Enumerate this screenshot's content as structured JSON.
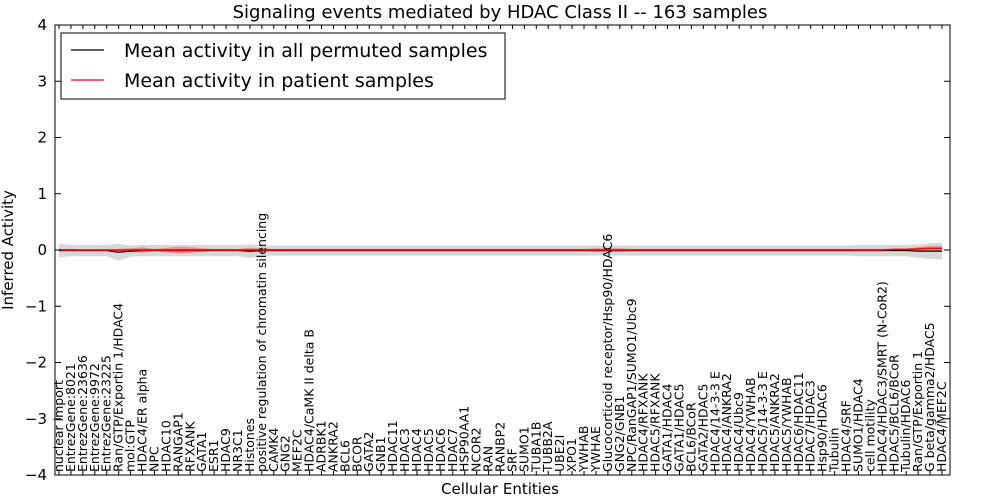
{
  "chart_data": {
    "type": "line",
    "title": "Signaling events mediated by HDAC Class II -- 163 samples",
    "xlabel": "Cellular Entities",
    "ylabel": "Inferred Activity",
    "ylim": [
      -4,
      4
    ],
    "yticks": [
      -4,
      -3,
      -2,
      -1,
      0,
      1,
      2,
      3,
      4
    ],
    "ytick_labels": [
      "−4",
      "−3",
      "−2",
      "−1",
      "0",
      "1",
      "2",
      "3",
      "4"
    ],
    "legend_position": "top-left",
    "colors": {
      "permuted": "#000000",
      "patient": "#ff0000",
      "band_permuted": "#c8c8c8",
      "band_patient": "#f08080"
    },
    "categories": [
      "nuclear import",
      "EntrezGene:8021",
      "EntrezGene:23636",
      "EntrezGene:9972",
      "EntrezGene:23225",
      "Ran/GTP/Exportin 1/HDAC4",
      "mol:GTP",
      "HDAC4/ER alpha",
      "NPC",
      "HDAC10",
      "RANGAP1",
      "RFXANK",
      "GATA1",
      "ESR1",
      "HDAC9",
      "NR3C1",
      "Histones",
      "positive regulation of chromatin silencing",
      "CAMK4",
      "GNG2",
      "MEF2C",
      "HDAC4/CaMK II delta B",
      "ADRBK1",
      "ANKRA2",
      "BCL6",
      "BCOR",
      "GATA2",
      "GNB1",
      "HDAC11",
      "HDAC3",
      "HDAC4",
      "HDAC5",
      "HDAC6",
      "HDAC7",
      "HSP90AA1",
      "NCOR2",
      "RAN",
      "RANBP2",
      "SRF",
      "SUMO1",
      "TUBA1B",
      "TUBB2A",
      "UBE2I",
      "XPO1",
      "YWHAB",
      "YWHAE",
      "Glucocorticoid receptor/Hsp90/HDAC6",
      "GNG2/GNB1",
      "NPC/RanGAP1/SUMO1/Ubc9",
      "HDAC4/RFXANK",
      "HDAC5/RFXANK",
      "GATA1/HDAC4",
      "GATA1/HDAC5",
      "BCL6/BCoR",
      "GATA2/HDAC5",
      "HDAC4/14-3-3 E",
      "HDAC4/ANKRA2",
      "HDAC4/Ubc9",
      "HDAC4/YWHAB",
      "HDAC5/14-3-3 E",
      "HDAC5/ANKRA2",
      "HDAC5/YWHAB",
      "HDAC6/HDAC11",
      "HDAC7/HDAC3",
      "Hsp90/HDAC6",
      "Tubulin",
      "HDAC4/SRF",
      "SUMO1/HDAC4",
      "cell motility",
      "HDAC4/HDAC3/SMRT (N-CoR2)",
      "HDAC5/BCL6/BCoR",
      "Tubulin/HDAC6",
      "Ran/GTP/Exportin 1",
      "G beta/gamma2/HDAC5",
      "HDAC4/MEF2C"
    ],
    "series": [
      {
        "name": "Mean activity in all permuted samples",
        "values": [
          -0.01,
          -0.01,
          -0.01,
          -0.01,
          -0.01,
          -0.04,
          -0.02,
          -0.01,
          -0.01,
          -0.01,
          -0.01,
          -0.01,
          -0.01,
          -0.01,
          -0.01,
          -0.01,
          -0.02,
          -0.01,
          -0.01,
          -0.01,
          -0.01,
          -0.01,
          -0.01,
          -0.01,
          -0.01,
          -0.01,
          -0.01,
          -0.01,
          -0.01,
          -0.01,
          -0.01,
          -0.01,
          -0.01,
          -0.01,
          -0.01,
          -0.01,
          -0.01,
          -0.01,
          -0.01,
          -0.01,
          -0.01,
          -0.01,
          -0.01,
          -0.01,
          -0.01,
          -0.01,
          -0.01,
          -0.01,
          -0.01,
          -0.01,
          -0.01,
          -0.01,
          -0.01,
          -0.01,
          -0.01,
          -0.01,
          -0.01,
          -0.01,
          -0.01,
          -0.01,
          -0.01,
          -0.01,
          -0.01,
          -0.01,
          -0.01,
          -0.01,
          -0.01,
          -0.01,
          -0.01,
          -0.01,
          -0.01,
          -0.01,
          -0.02,
          -0.02,
          -0.02
        ],
        "band": [
          0.12,
          0.1,
          0.1,
          0.1,
          0.1,
          0.15,
          0.1,
          0.1,
          0.1,
          0.1,
          0.1,
          0.1,
          0.1,
          0.1,
          0.1,
          0.1,
          0.12,
          0.1,
          0.09,
          0.09,
          0.09,
          0.09,
          0.09,
          0.09,
          0.09,
          0.09,
          0.09,
          0.09,
          0.09,
          0.09,
          0.09,
          0.09,
          0.09,
          0.09,
          0.09,
          0.09,
          0.09,
          0.09,
          0.09,
          0.09,
          0.09,
          0.09,
          0.09,
          0.09,
          0.09,
          0.09,
          0.09,
          0.09,
          0.09,
          0.09,
          0.09,
          0.09,
          0.09,
          0.09,
          0.09,
          0.09,
          0.09,
          0.09,
          0.09,
          0.09,
          0.09,
          0.09,
          0.09,
          0.09,
          0.09,
          0.09,
          0.09,
          0.1,
          0.1,
          0.1,
          0.1,
          0.1,
          0.12,
          0.14,
          0.15
        ]
      },
      {
        "name": "Mean activity in patient samples",
        "values": [
          0.0,
          0.0,
          0.0,
          0.0,
          0.0,
          0.0,
          0.0,
          0.0,
          0.0,
          0.0,
          0.0,
          0.0,
          0.0,
          0.0,
          0.0,
          0.0,
          0.0,
          0.0,
          0.0,
          0.0,
          0.0,
          0.0,
          0.0,
          0.0,
          0.0,
          0.0,
          0.0,
          0.0,
          0.0,
          0.0,
          0.0,
          0.0,
          0.0,
          0.0,
          0.0,
          0.0,
          0.0,
          0.0,
          0.0,
          0.0,
          0.0,
          0.0,
          0.0,
          0.0,
          0.0,
          0.0,
          0.0,
          0.0,
          0.0,
          0.0,
          0.0,
          0.0,
          0.0,
          0.0,
          0.0,
          0.0,
          0.0,
          0.0,
          0.0,
          0.0,
          0.0,
          0.0,
          0.0,
          0.0,
          0.0,
          0.0,
          0.0,
          0.0,
          0.0,
          0.0,
          0.01,
          0.01,
          0.02,
          0.03,
          0.03
        ],
        "band": [
          0.02,
          0.02,
          0.01,
          0.01,
          0.01,
          0.02,
          0.03,
          0.05,
          0.02,
          0.04,
          0.06,
          0.05,
          0.03,
          0.02,
          0.02,
          0.02,
          0.04,
          0.03,
          0.02,
          0.02,
          0.02,
          0.02,
          0.02,
          0.02,
          0.02,
          0.02,
          0.02,
          0.02,
          0.02,
          0.02,
          0.02,
          0.02,
          0.02,
          0.02,
          0.02,
          0.02,
          0.02,
          0.02,
          0.02,
          0.02,
          0.02,
          0.02,
          0.02,
          0.02,
          0.02,
          0.03,
          0.03,
          0.03,
          0.02,
          0.02,
          0.02,
          0.02,
          0.02,
          0.02,
          0.02,
          0.02,
          0.02,
          0.02,
          0.02,
          0.02,
          0.02,
          0.02,
          0.02,
          0.02,
          0.02,
          0.02,
          0.02,
          0.02,
          0.02,
          0.02,
          0.02,
          0.02,
          0.03,
          0.04,
          0.04
        ]
      }
    ]
  }
}
